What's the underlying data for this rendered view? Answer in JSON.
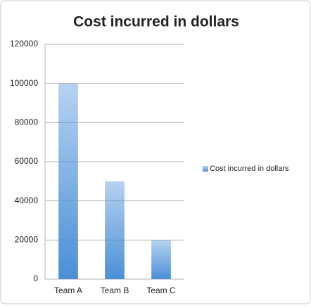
{
  "chart_data": {
    "type": "bar",
    "title": "Cost incurred in dollars",
    "categories": [
      "Team A",
      "Team B",
      "Team C"
    ],
    "series": [
      {
        "name": "Cost incurred in dollars",
        "color": "#4a8fd8",
        "values": [
          100000,
          50000,
          20000
        ]
      }
    ],
    "ylim": [
      0,
      120000
    ],
    "yticks": [
      0,
      20000,
      40000,
      60000,
      80000,
      100000,
      120000
    ],
    "grid": true,
    "legend": "right"
  }
}
